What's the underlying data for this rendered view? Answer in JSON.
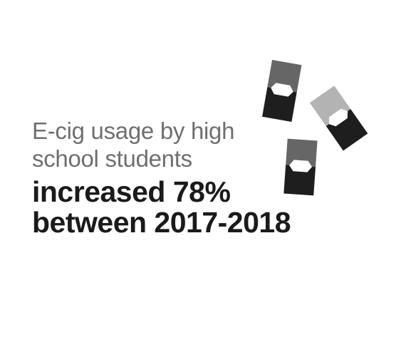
{
  "infographic": {
    "subtitle_line_1": "E-cig usage by high",
    "subtitle_line_2": "school students",
    "headline_line_1": "increased 78%",
    "headline_line_2": "between 2017-2018"
  },
  "illustration": {
    "icon": "e-cig-pods-icon",
    "colors": {
      "dark": "#1e1e1e",
      "mid": "#666666",
      "light": "#b3b3b3",
      "window": "#ffffff"
    }
  },
  "colors": {
    "subtitle": "#6f6f6f",
    "headline": "#1a1a1a",
    "background": "#ffffff"
  }
}
